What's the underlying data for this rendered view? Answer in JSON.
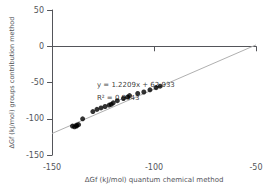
{
  "chart_data": {
    "type": "scatter",
    "xlabel": "ΔGf (kJ/mol) quantum chemical method",
    "ylabel": "ΔGf (kJ/mol) groups contribution method",
    "series": [
      {
        "type": "scatter",
        "color": "#000000",
        "x": [
          -140,
          -139,
          -138,
          -138,
          -137,
          -135,
          -130,
          -128,
          -126,
          -124,
          -122,
          -121,
          -120,
          -118,
          -115,
          -113,
          -112,
          -108,
          -105,
          -102,
          -99,
          -97
        ],
        "values": [
          -110,
          -111,
          -110,
          -109,
          -108,
          -100,
          -90,
          -87,
          -85,
          -83,
          -81,
          -80,
          -78,
          -75,
          -72,
          -70,
          -68,
          -65,
          -63,
          -60,
          -57,
          -55
        ]
      },
      {
        "type": "line",
        "color": "#b0b0b0",
        "x": [
          -150,
          -50
        ],
        "values": [
          -120.202,
          1.888
        ]
      }
    ],
    "annotations": [
      {
        "text": "y = 1.2209x + 62.933",
        "x": -128,
        "y": -58
      },
      {
        "text": "R² = 0.9443",
        "x": -128,
        "y": -66
      }
    ],
    "xlim": [
      -150,
      -50
    ],
    "xticks": [
      -150,
      -100,
      -50
    ],
    "ylim": [
      -150,
      50
    ],
    "yticks": [
      -150,
      -100,
      -50,
      0,
      50
    ],
    "grid": false
  }
}
